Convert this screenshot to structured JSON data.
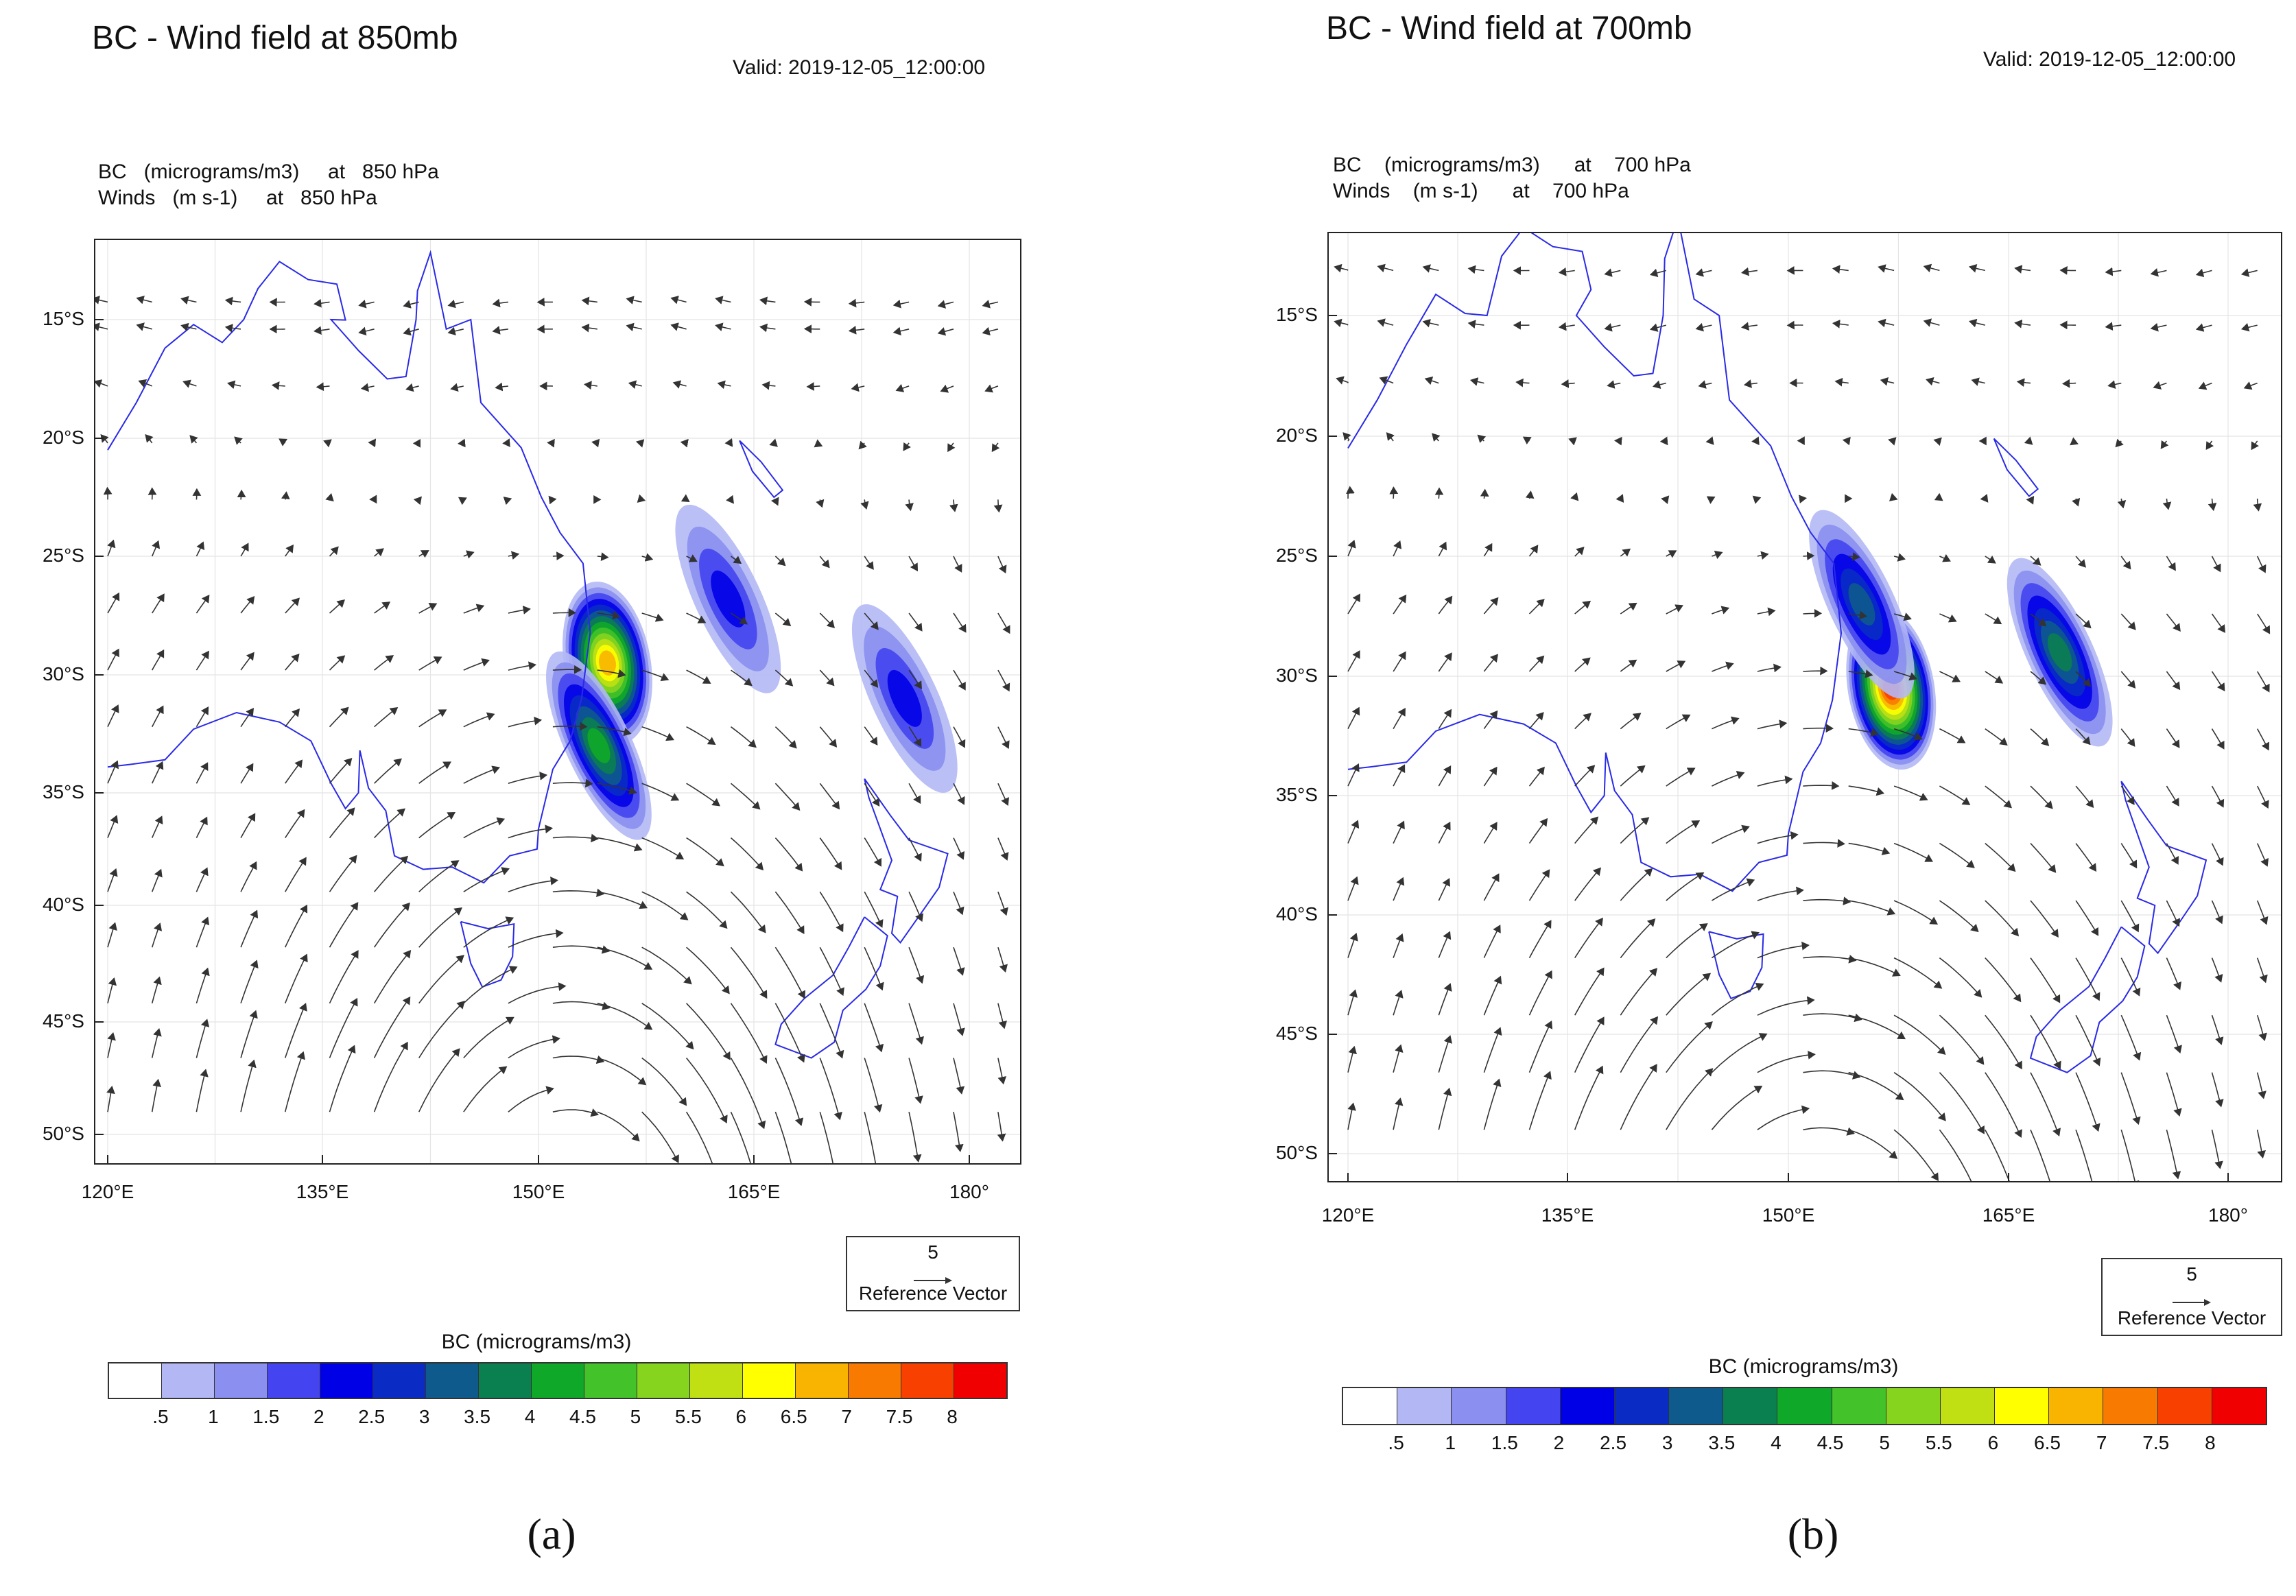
{
  "colorbar": {
    "title": "BC  (micrograms/m3)",
    "ticks": [
      ".5",
      "1",
      "1.5",
      "2",
      "2.5",
      "3",
      "3.5",
      "4",
      "4.5",
      "5",
      "5.5",
      "6",
      "6.5",
      "7",
      "7.5",
      "8"
    ],
    "colors": [
      "#ffffff",
      "#b3b8f5",
      "#8a8ff0",
      "#4444f0",
      "#0000e6",
      "#0a2cc4",
      "#0e5a8c",
      "#0a8050",
      "#10a828",
      "#44c22a",
      "#86d41e",
      "#c0e014",
      "#ffff00",
      "#f8b400",
      "#f87a00",
      "#f84000",
      "#f00000"
    ]
  },
  "panels": [
    {
      "id": "a",
      "title": "BC - Wind field at 850mb",
      "valid": "Valid: 2019-12-05_12:00:00",
      "line1": "BC   (micrograms/m3)     at   850 hPa",
      "line2": "Winds   (m s-1)     at   850 hPa",
      "lat_labels": [
        "15°S",
        "20°S",
        "25°S",
        "30°S",
        "35°S",
        "40°S",
        "45°S",
        "50°S"
      ],
      "lon_labels": [
        "120°E",
        "135°E",
        "150°E",
        "165°E",
        "180°"
      ],
      "reference": {
        "magnitude": "5",
        "label": "Reference Vector"
      },
      "caption": "(a)",
      "plumes": [
        {
          "lon": 163.2,
          "lat": -26.8,
          "max": 1.8
        },
        {
          "lon": 175.5,
          "lat": -31.0,
          "max": 1.6
        },
        {
          "lon": 154.8,
          "lat": -29.5,
          "max": 6.5
        },
        {
          "lon": 154.2,
          "lat": -33.0,
          "max": 4.0
        }
      ]
    },
    {
      "id": "b",
      "title": "BC - Wind field at 700mb",
      "valid": "Valid: 2019-12-05_12:00:00",
      "line1": "BC    (micrograms/m3)      at    700 hPa",
      "line2": "Winds    (m s-1)      at    700 hPa",
      "lat_labels": [
        "15°S",
        "20°S",
        "25°S",
        "30°S",
        "35°S",
        "40°S",
        "45°S",
        "50°S"
      ],
      "lon_labels": [
        "120°E",
        "135°E",
        "150°E",
        "165°E",
        "180°"
      ],
      "reference": {
        "magnitude": "5",
        "label": "Reference Vector"
      },
      "caption": "(b)",
      "plumes": [
        {
          "lon": 157.0,
          "lat": -30.5,
          "max": 7.5
        },
        {
          "lon": 155.0,
          "lat": -27.0,
          "max": 3.0
        },
        {
          "lon": 168.5,
          "lat": -29.0,
          "max": 3.5
        }
      ]
    }
  ]
}
